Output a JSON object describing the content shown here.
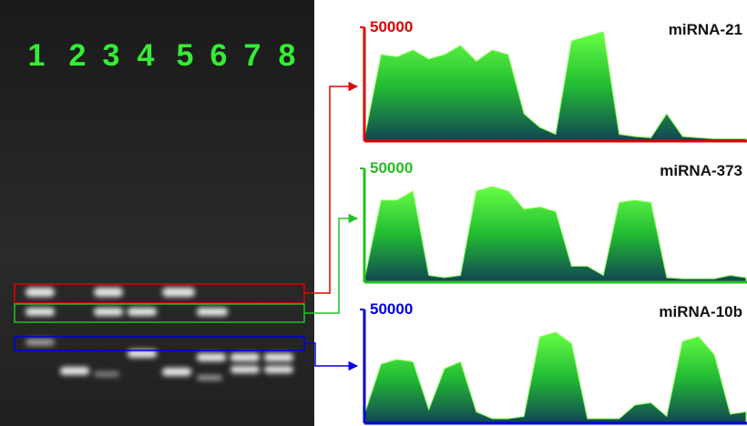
{
  "gel": {
    "lanes": [
      "1",
      "2",
      "3",
      "4",
      "5",
      "6",
      "7",
      "8"
    ]
  },
  "panels": [
    {
      "label": "miRNA-21",
      "color": "#e00000",
      "ymax": 50000,
      "profile": [
        3000,
        38000,
        37000,
        40000,
        36000,
        38000,
        42000,
        35000,
        40000,
        38000,
        12000,
        6000,
        3000,
        44000,
        46000,
        48000,
        3000,
        2000,
        1500,
        12000,
        2000,
        1500,
        1000,
        1000,
        1000
      ]
    },
    {
      "label": "miRNA-373",
      "color": "#22c022",
      "ymax": 50000,
      "profile": [
        3000,
        36000,
        36000,
        40000,
        3000,
        2000,
        3000,
        40000,
        42000,
        40000,
        32000,
        33000,
        31000,
        7000,
        7000,
        3000,
        35000,
        36000,
        35000,
        2000,
        1500,
        1500,
        1500,
        3000,
        2000
      ]
    },
    {
      "label": "miRNA-10b",
      "color": "#0000e0",
      "ymax": 50000,
      "profile": [
        5000,
        26000,
        28000,
        27000,
        6000,
        24000,
        27000,
        5000,
        2000,
        2000,
        3000,
        38000,
        40000,
        35000,
        2000,
        2000,
        2000,
        8000,
        9000,
        3000,
        36000,
        38000,
        30000,
        4000,
        5000
      ]
    }
  ]
}
